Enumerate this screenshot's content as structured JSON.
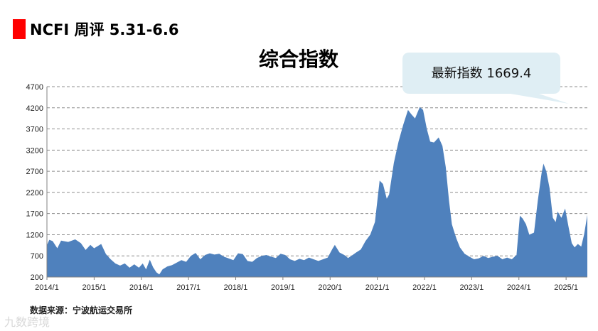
{
  "header": {
    "text": "NCFI 周评 5.31-6.6",
    "marker_color": "#ff0000"
  },
  "source": "数据来源：宁波航运交易所",
  "watermark": "九数跨境",
  "callout": {
    "text": "最新指数 1669.4",
    "value": 1669.4,
    "fill": "#dfeef4"
  },
  "chart_data": {
    "type": "area",
    "title": "综合指数",
    "xlabel": "",
    "ylabel": "",
    "ylim": [
      200,
      4700
    ],
    "y_ticks": [
      4700,
      4200,
      3700,
      3200,
      2700,
      2200,
      1700,
      1200,
      700,
      200
    ],
    "x_range": [
      2014.0,
      2025.45
    ],
    "x_ticks": [
      {
        "label": "2014/1",
        "x": 2014.0
      },
      {
        "label": "2015/1",
        "x": 2015.0
      },
      {
        "label": "2016/1",
        "x": 2016.0
      },
      {
        "label": "2017/1",
        "x": 2017.0
      },
      {
        "label": "2018/1",
        "x": 2018.0
      },
      {
        "label": "2019/1",
        "x": 2019.0
      },
      {
        "label": "2020/1",
        "x": 2020.0
      },
      {
        "label": "2021/1",
        "x": 2021.0
      },
      {
        "label": "2022/1",
        "x": 2022.0
      },
      {
        "label": "2023/1",
        "x": 2023.0
      },
      {
        "label": "2024/1",
        "x": 2024.0
      },
      {
        "label": "2025/1",
        "x": 2025.0
      }
    ],
    "grid": true,
    "grid_style": "dashed",
    "fill_color": "#4f81bd",
    "series": [
      {
        "points": [
          [
            2014.0,
            950
          ],
          [
            2014.05,
            1080
          ],
          [
            2014.12,
            1050
          ],
          [
            2014.22,
            880
          ],
          [
            2014.3,
            1060
          ],
          [
            2014.45,
            1030
          ],
          [
            2014.6,
            1090
          ],
          [
            2014.72,
            1000
          ],
          [
            2014.82,
            840
          ],
          [
            2014.92,
            960
          ],
          [
            2015.0,
            880
          ],
          [
            2015.15,
            980
          ],
          [
            2015.25,
            740
          ],
          [
            2015.35,
            620
          ],
          [
            2015.45,
            520
          ],
          [
            2015.55,
            470
          ],
          [
            2015.65,
            520
          ],
          [
            2015.75,
            420
          ],
          [
            2015.85,
            500
          ],
          [
            2015.95,
            420
          ],
          [
            2016.03,
            520
          ],
          [
            2016.1,
            380
          ],
          [
            2016.18,
            610
          ],
          [
            2016.25,
            430
          ],
          [
            2016.32,
            310
          ],
          [
            2016.38,
            260
          ],
          [
            2016.45,
            380
          ],
          [
            2016.55,
            450
          ],
          [
            2016.65,
            480
          ],
          [
            2016.75,
            540
          ],
          [
            2016.85,
            600
          ],
          [
            2016.95,
            560
          ],
          [
            2017.05,
            700
          ],
          [
            2017.15,
            770
          ],
          [
            2017.25,
            620
          ],
          [
            2017.35,
            720
          ],
          [
            2017.45,
            760
          ],
          [
            2017.55,
            730
          ],
          [
            2017.65,
            750
          ],
          [
            2017.75,
            680
          ],
          [
            2017.85,
            640
          ],
          [
            2017.95,
            600
          ],
          [
            2018.05,
            760
          ],
          [
            2018.15,
            740
          ],
          [
            2018.25,
            580
          ],
          [
            2018.35,
            560
          ],
          [
            2018.45,
            650
          ],
          [
            2018.55,
            700
          ],
          [
            2018.65,
            720
          ],
          [
            2018.75,
            680
          ],
          [
            2018.85,
            650
          ],
          [
            2018.95,
            750
          ],
          [
            2019.05,
            720
          ],
          [
            2019.15,
            620
          ],
          [
            2019.25,
            580
          ],
          [
            2019.35,
            630
          ],
          [
            2019.45,
            600
          ],
          [
            2019.55,
            660
          ],
          [
            2019.65,
            620
          ],
          [
            2019.75,
            580
          ],
          [
            2019.85,
            620
          ],
          [
            2019.95,
            660
          ],
          [
            2020.05,
            870
          ],
          [
            2020.1,
            960
          ],
          [
            2020.2,
            780
          ],
          [
            2020.3,
            720
          ],
          [
            2020.38,
            650
          ],
          [
            2020.45,
            700
          ],
          [
            2020.55,
            780
          ],
          [
            2020.65,
            850
          ],
          [
            2020.75,
            1050
          ],
          [
            2020.85,
            1200
          ],
          [
            2020.95,
            1500
          ],
          [
            2021.02,
            2200
          ],
          [
            2021.05,
            2480
          ],
          [
            2021.12,
            2400
          ],
          [
            2021.2,
            2050
          ],
          [
            2021.25,
            2150
          ],
          [
            2021.35,
            2900
          ],
          [
            2021.45,
            3400
          ],
          [
            2021.55,
            3800
          ],
          [
            2021.65,
            4150
          ],
          [
            2021.72,
            4050
          ],
          [
            2021.8,
            3950
          ],
          [
            2021.9,
            4220
          ],
          [
            2021.97,
            4150
          ],
          [
            2022.05,
            3700
          ],
          [
            2022.12,
            3400
          ],
          [
            2022.2,
            3380
          ],
          [
            2022.3,
            3500
          ],
          [
            2022.38,
            3300
          ],
          [
            2022.45,
            2800
          ],
          [
            2022.52,
            2000
          ],
          [
            2022.58,
            1450
          ],
          [
            2022.62,
            1300
          ],
          [
            2022.68,
            1100
          ],
          [
            2022.75,
            900
          ],
          [
            2022.85,
            750
          ],
          [
            2022.95,
            680
          ],
          [
            2023.05,
            620
          ],
          [
            2023.15,
            640
          ],
          [
            2023.25,
            700
          ],
          [
            2023.35,
            650
          ],
          [
            2023.45,
            680
          ],
          [
            2023.55,
            700
          ],
          [
            2023.65,
            620
          ],
          [
            2023.75,
            660
          ],
          [
            2023.85,
            620
          ],
          [
            2023.95,
            720
          ],
          [
            2024.02,
            1650
          ],
          [
            2024.08,
            1580
          ],
          [
            2024.15,
            1450
          ],
          [
            2024.22,
            1200
          ],
          [
            2024.32,
            1250
          ],
          [
            2024.4,
            2000
          ],
          [
            2024.48,
            2650
          ],
          [
            2024.52,
            2880
          ],
          [
            2024.58,
            2700
          ],
          [
            2024.65,
            2300
          ],
          [
            2024.72,
            1600
          ],
          [
            2024.78,
            1500
          ],
          [
            2024.82,
            1750
          ],
          [
            2024.9,
            1600
          ],
          [
            2024.98,
            1820
          ],
          [
            2025.05,
            1400
          ],
          [
            2025.12,
            1000
          ],
          [
            2025.18,
            900
          ],
          [
            2025.25,
            980
          ],
          [
            2025.32,
            920
          ],
          [
            2025.38,
            1200
          ],
          [
            2025.45,
            1669.4
          ]
        ]
      }
    ]
  }
}
